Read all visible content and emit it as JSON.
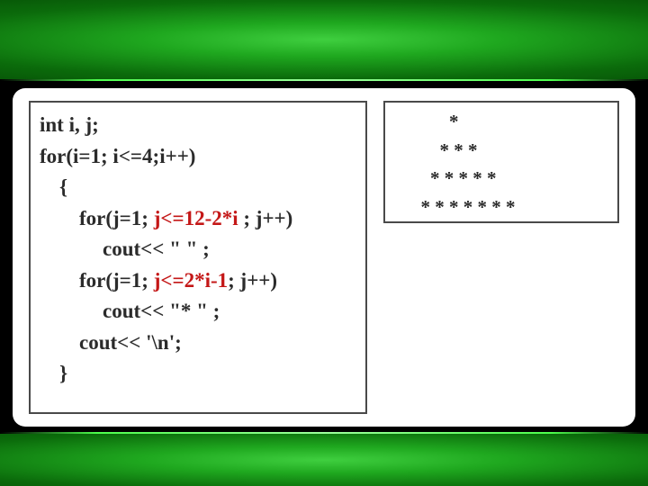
{
  "colors": {
    "background": "#000000",
    "card_bg": "#ffffff",
    "code_text": "#2b2b2b",
    "highlight": "#c41717",
    "box_border": "#4a4a4a",
    "band_green_center": "#3fcf3f",
    "band_green_outer": "#022a02"
  },
  "typography": {
    "font_family": "Times New Roman",
    "code_fontsize_pt": 17,
    "code_fontweight": "bold",
    "output_fontsize_pt": 16,
    "output_fontweight": "bold"
  },
  "code": {
    "l0": "int i, j;",
    "l1": "for(i=1; i<=4;i++)",
    "l2": "{",
    "l3a": "for(j=1; ",
    "l3hl": "j<=12-2*i",
    "l3b": " ; j++)",
    "l4": "cout<< \" \" ;",
    "l5a": "for(j=1; ",
    "l5hl": "j<=2*i-1",
    "l5b": "; j++)",
    "l6": "cout<< \"* \" ;",
    "l7": "cout<< '\\n';",
    "l8": "}"
  },
  "output": {
    "r0": "            *",
    "r1": "          * * *",
    "r2": "        * * * * *",
    "r3": "      * * * * * * *"
  }
}
